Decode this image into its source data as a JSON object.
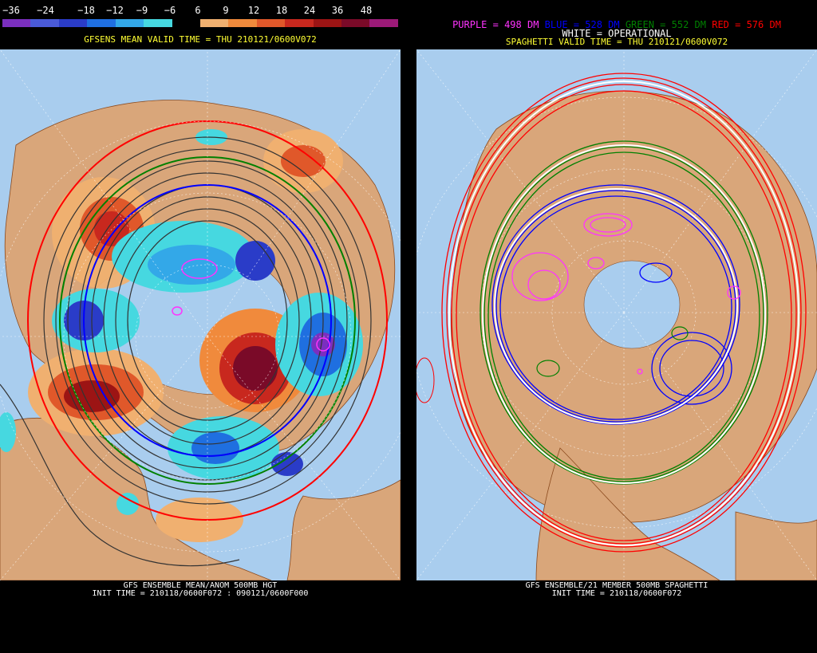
{
  "left": {
    "colorbar": {
      "labels": [
        "−36",
        "−24",
        "−18",
        "−12",
        "−9",
        "−6",
        "6",
        "9",
        "12",
        "18",
        "24",
        "36",
        "48"
      ],
      "colors": [
        "#7b2fbf",
        "#4a5ad8",
        "#2a3cc8",
        "#1f6fe0",
        "#33a8e8",
        "#46d8e0",
        "#000000",
        "#f0b070",
        "#f08a3c",
        "#e0582a",
        "#c8281e",
        "#9c1414",
        "#7a0a28",
        "#9c1a78"
      ]
    },
    "title": "GFSENS MEAN VALID TIME = THU 210121/0600V072",
    "bottom_line1": "GFS ENSEMBLE MEAN/ANOM 500MB HGT",
    "bottom_line2": "INIT TIME = 210118/0600F072 : 090121/0600F000"
  },
  "right": {
    "legend": {
      "purple": "PURPLE = 498 DM",
      "blue": "BLUE = 528 DM",
      "green": "GREEN = 552 DM",
      "red": "RED = 576 DM",
      "white": "WHITE = OPERATIONAL"
    },
    "title": "SPAGHETTI VALID TIME = THU 210121/0600V072",
    "bottom_line1": "GFS ENSEMBLE/21 MEMBER 500MB SPAGHETTI",
    "bottom_line2": "INIT TIME = 210118/0600F072"
  },
  "colors": {
    "ocean": "#a9cdee",
    "land": "#d9a67a",
    "border": "#8b4a1e",
    "purple": "#ff33ff",
    "blue": "#0000ff",
    "green": "#008000",
    "red": "#ff0000"
  }
}
